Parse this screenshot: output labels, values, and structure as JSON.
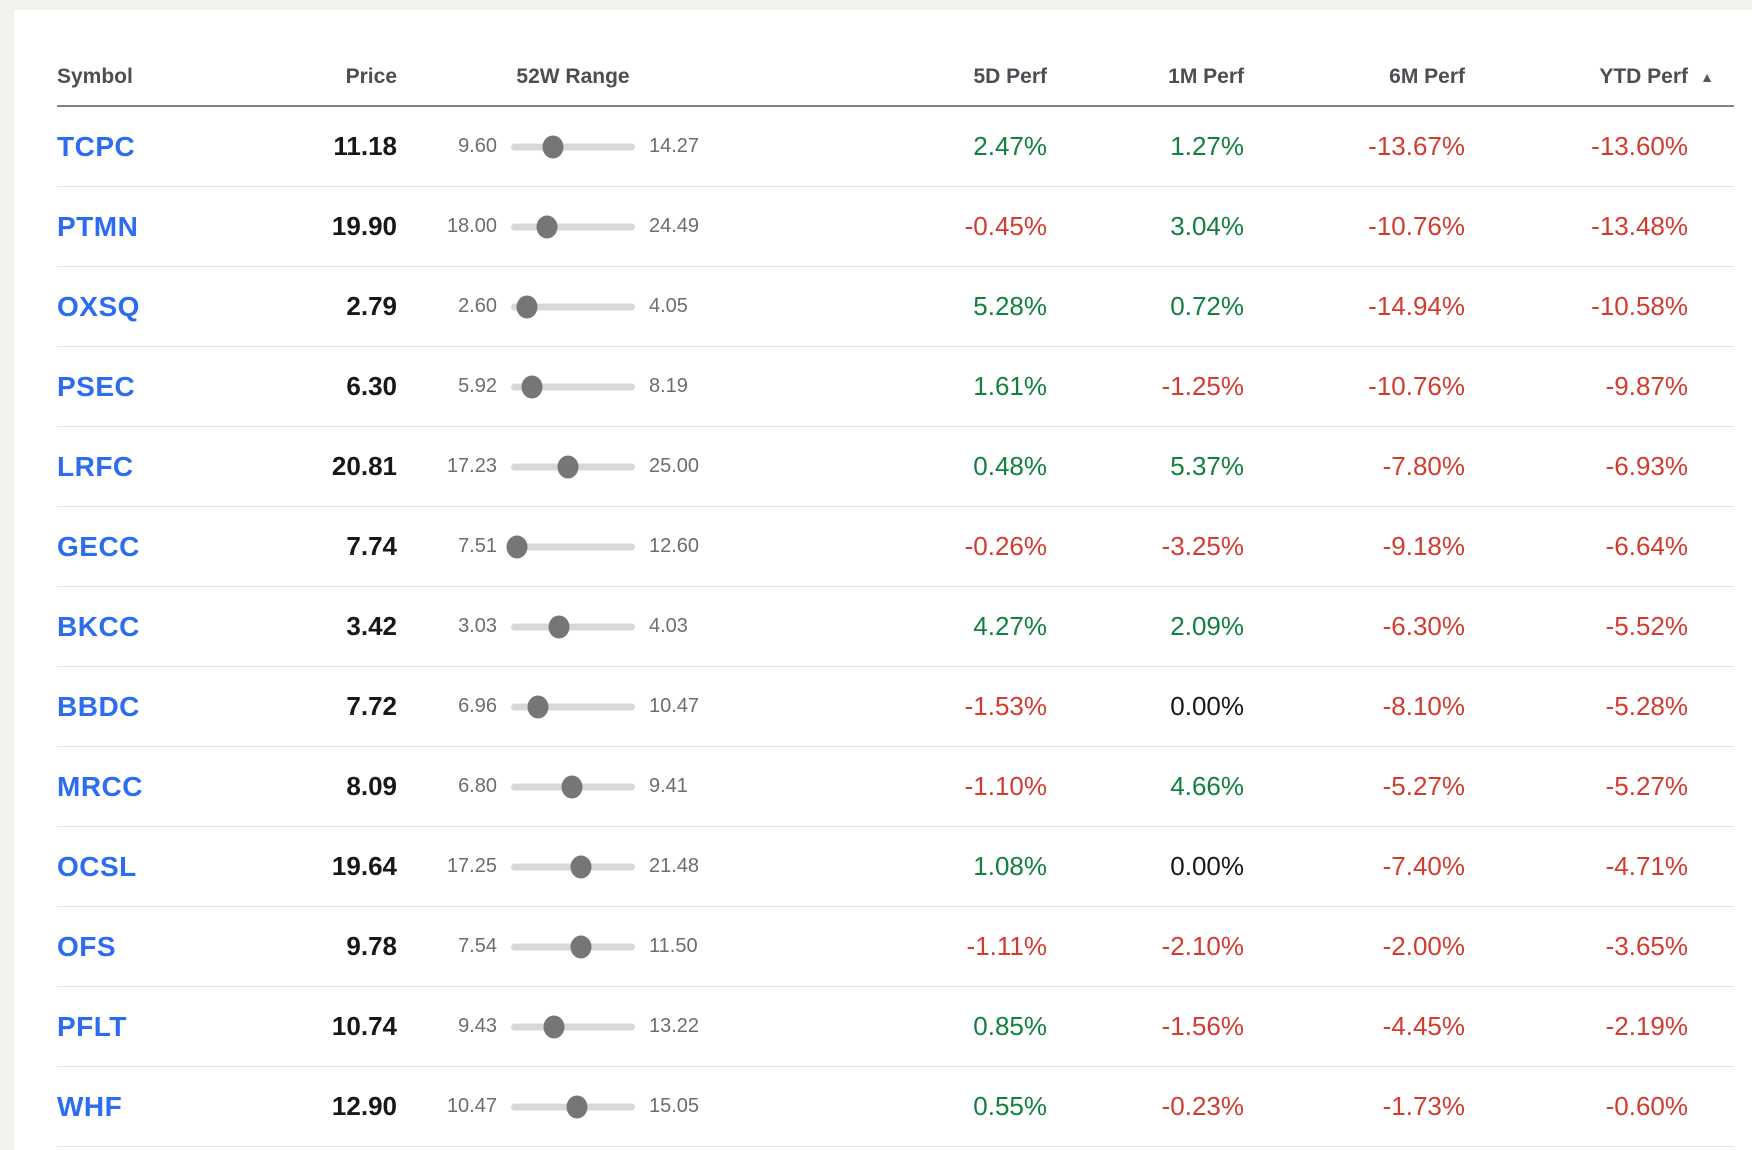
{
  "table": {
    "columns": {
      "symbol": "Symbol",
      "price": "Price",
      "range": "52W Range",
      "perf_5d": "5D Perf",
      "perf_1m": "1M Perf",
      "perf_6m": "6M Perf",
      "perf_ytd": "YTD Perf"
    },
    "sort": {
      "column": "perf_ytd",
      "direction": "ascending",
      "icon": "▲"
    },
    "rows": [
      {
        "symbol": "TCPC",
        "price": "11.18",
        "low": "9.60",
        "high": "14.27",
        "perf_5d": "2.47%",
        "perf_1m": "1.27%",
        "perf_6m": "-13.67%",
        "perf_ytd": "-13.60%"
      },
      {
        "symbol": "PTMN",
        "price": "19.90",
        "low": "18.00",
        "high": "24.49",
        "perf_5d": "-0.45%",
        "perf_1m": "3.04%",
        "perf_6m": "-10.76%",
        "perf_ytd": "-13.48%"
      },
      {
        "symbol": "OXSQ",
        "price": "2.79",
        "low": "2.60",
        "high": "4.05",
        "perf_5d": "5.28%",
        "perf_1m": "0.72%",
        "perf_6m": "-14.94%",
        "perf_ytd": "-10.58%"
      },
      {
        "symbol": "PSEC",
        "price": "6.30",
        "low": "5.92",
        "high": "8.19",
        "perf_5d": "1.61%",
        "perf_1m": "-1.25%",
        "perf_6m": "-10.76%",
        "perf_ytd": "-9.87%"
      },
      {
        "symbol": "LRFC",
        "price": "20.81",
        "low": "17.23",
        "high": "25.00",
        "perf_5d": "0.48%",
        "perf_1m": "5.37%",
        "perf_6m": "-7.80%",
        "perf_ytd": "-6.93%"
      },
      {
        "symbol": "GECC",
        "price": "7.74",
        "low": "7.51",
        "high": "12.60",
        "perf_5d": "-0.26%",
        "perf_1m": "-3.25%",
        "perf_6m": "-9.18%",
        "perf_ytd": "-6.64%"
      },
      {
        "symbol": "BKCC",
        "price": "3.42",
        "low": "3.03",
        "high": "4.03",
        "perf_5d": "4.27%",
        "perf_1m": "2.09%",
        "perf_6m": "-6.30%",
        "perf_ytd": "-5.52%"
      },
      {
        "symbol": "BBDC",
        "price": "7.72",
        "low": "6.96",
        "high": "10.47",
        "perf_5d": "-1.53%",
        "perf_1m": "0.00%",
        "perf_6m": "-8.10%",
        "perf_ytd": "-5.28%"
      },
      {
        "symbol": "MRCC",
        "price": "8.09",
        "low": "6.80",
        "high": "9.41",
        "perf_5d": "-1.10%",
        "perf_1m": "4.66%",
        "perf_6m": "-5.27%",
        "perf_ytd": "-5.27%"
      },
      {
        "symbol": "OCSL",
        "price": "19.64",
        "low": "17.25",
        "high": "21.48",
        "perf_5d": "1.08%",
        "perf_1m": "0.00%",
        "perf_6m": "-7.40%",
        "perf_ytd": "-4.71%"
      },
      {
        "symbol": "OFS",
        "price": "9.78",
        "low": "7.54",
        "high": "11.50",
        "perf_5d": "-1.11%",
        "perf_1m": "-2.10%",
        "perf_6m": "-2.00%",
        "perf_ytd": "-3.65%"
      },
      {
        "symbol": "PFLT",
        "price": "10.74",
        "low": "9.43",
        "high": "13.22",
        "perf_5d": "0.85%",
        "perf_1m": "-1.56%",
        "perf_6m": "-4.45%",
        "perf_ytd": "-2.19%"
      },
      {
        "symbol": "WHF",
        "price": "12.90",
        "low": "10.47",
        "high": "15.05",
        "perf_5d": "0.55%",
        "perf_1m": "-0.23%",
        "perf_6m": "-1.73%",
        "perf_ytd": "-0.60%"
      }
    ]
  },
  "colors": {
    "positive": "#12803f",
    "negative": "#d33b2f",
    "neutral": "#17181a",
    "symbol_link": "#2b6cf0"
  }
}
